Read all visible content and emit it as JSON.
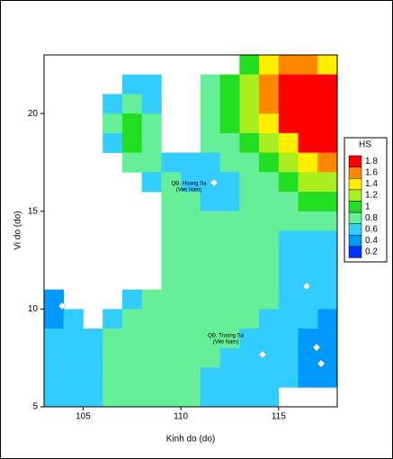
{
  "chart_data": {
    "type": "heatmap",
    "x_label": "Kinh do (do)",
    "y_label": "Vi do (do)",
    "xlim": [
      103,
      118
    ],
    "ylim": [
      5,
      23
    ],
    "xticks": [
      105,
      110,
      115
    ],
    "yticks": [
      5,
      10,
      15,
      20
    ],
    "x": [
      103.5,
      104.5,
      105.5,
      106.5,
      107.5,
      108.5,
      109.5,
      110.5,
      111.5,
      112.5,
      113.5,
      114.5,
      115.5,
      116.5,
      117.5
    ],
    "y": [
      22.5,
      21.5,
      20.5,
      19.5,
      18.5,
      17.5,
      16.5,
      15.5,
      14.5,
      13.5,
      12.5,
      11.5,
      10.5,
      9.5,
      8.5,
      7.5,
      6.5,
      5.5
    ],
    "z": [
      [
        null,
        null,
        null,
        null,
        null,
        null,
        null,
        null,
        null,
        null,
        1.0,
        1.4,
        1.6,
        1.6,
        1.4
      ],
      [
        null,
        null,
        null,
        null,
        0.6,
        0.6,
        null,
        null,
        0.8,
        1.0,
        1.2,
        1.6,
        1.8,
        1.8,
        1.8
      ],
      [
        null,
        null,
        null,
        0.6,
        0.8,
        0.6,
        null,
        null,
        0.8,
        1.0,
        1.2,
        1.6,
        1.8,
        1.8,
        1.8
      ],
      [
        null,
        null,
        null,
        0.8,
        1.0,
        0.8,
        null,
        null,
        0.8,
        1.0,
        1.2,
        1.4,
        1.8,
        1.8,
        1.8
      ],
      [
        null,
        null,
        null,
        0.6,
        1.0,
        0.8,
        null,
        null,
        0.8,
        0.8,
        1.0,
        1.2,
        1.4,
        1.8,
        1.8
      ],
      [
        null,
        null,
        null,
        null,
        0.8,
        0.8,
        0.6,
        0.6,
        0.6,
        0.8,
        0.8,
        1.0,
        1.2,
        1.4,
        1.6
      ],
      [
        null,
        null,
        null,
        null,
        null,
        0.6,
        0.8,
        0.6,
        0.6,
        0.6,
        0.8,
        0.8,
        1.0,
        1.2,
        1.2
      ],
      [
        null,
        null,
        null,
        null,
        null,
        null,
        0.8,
        0.8,
        0.6,
        0.6,
        0.8,
        0.8,
        0.8,
        1.0,
        1.0
      ],
      [
        null,
        null,
        null,
        null,
        null,
        null,
        0.8,
        0.8,
        0.8,
        0.8,
        0.8,
        0.8,
        0.8,
        0.8,
        0.8
      ],
      [
        null,
        null,
        null,
        null,
        null,
        null,
        0.8,
        0.8,
        0.8,
        0.8,
        0.8,
        0.8,
        0.6,
        0.6,
        0.6
      ],
      [
        null,
        null,
        null,
        null,
        null,
        null,
        0.8,
        0.8,
        0.8,
        0.8,
        0.8,
        0.8,
        0.6,
        0.6,
        0.6
      ],
      [
        null,
        null,
        null,
        null,
        null,
        null,
        0.8,
        0.8,
        0.8,
        0.8,
        0.8,
        0.8,
        0.6,
        0.6,
        0.6
      ],
      [
        0.4,
        null,
        null,
        null,
        0.6,
        0.8,
        0.8,
        0.8,
        0.8,
        0.8,
        0.8,
        0.8,
        0.6,
        0.6,
        0.6
      ],
      [
        0.4,
        0.6,
        null,
        0.6,
        0.8,
        0.8,
        0.8,
        0.8,
        0.8,
        0.8,
        0.8,
        0.6,
        0.6,
        0.6,
        0.4
      ],
      [
        0.6,
        0.6,
        0.6,
        0.8,
        0.8,
        0.8,
        0.8,
        0.8,
        0.8,
        0.8,
        0.6,
        0.6,
        0.6,
        0.4,
        0.4
      ],
      [
        0.6,
        0.6,
        0.6,
        0.8,
        0.8,
        0.8,
        0.8,
        0.8,
        0.8,
        0.6,
        0.6,
        0.6,
        0.6,
        0.4,
        0.4
      ],
      [
        0.6,
        0.6,
        0.6,
        0.8,
        0.8,
        0.8,
        0.8,
        0.8,
        0.6,
        0.6,
        0.6,
        0.6,
        0.6,
        0.4,
        0.4
      ],
      [
        0.6,
        0.6,
        0.6,
        0.8,
        0.8,
        0.8,
        0.8,
        0.8,
        0.6,
        0.6,
        0.6,
        0.6,
        null,
        null,
        null
      ]
    ],
    "legend_title": "HS",
    "levels": [
      0.2,
      0.4,
      0.6,
      0.8,
      1,
      1.2,
      1.4,
      1.6,
      1.8
    ],
    "colors": [
      "#0033ff",
      "#0099ff",
      "#33ccff",
      "#66ee99",
      "#22dd22",
      "#aaee22",
      "#ffee00",
      "#ff8800",
      "#ff0000"
    ],
    "annotations": [
      {
        "lines": [
          "QĐ. Hoang Sa",
          "(Viet Nam)"
        ]
      },
      {
        "lines": [
          "QĐ. Truong Sa",
          "(Viet Nam)"
        ]
      }
    ]
  }
}
